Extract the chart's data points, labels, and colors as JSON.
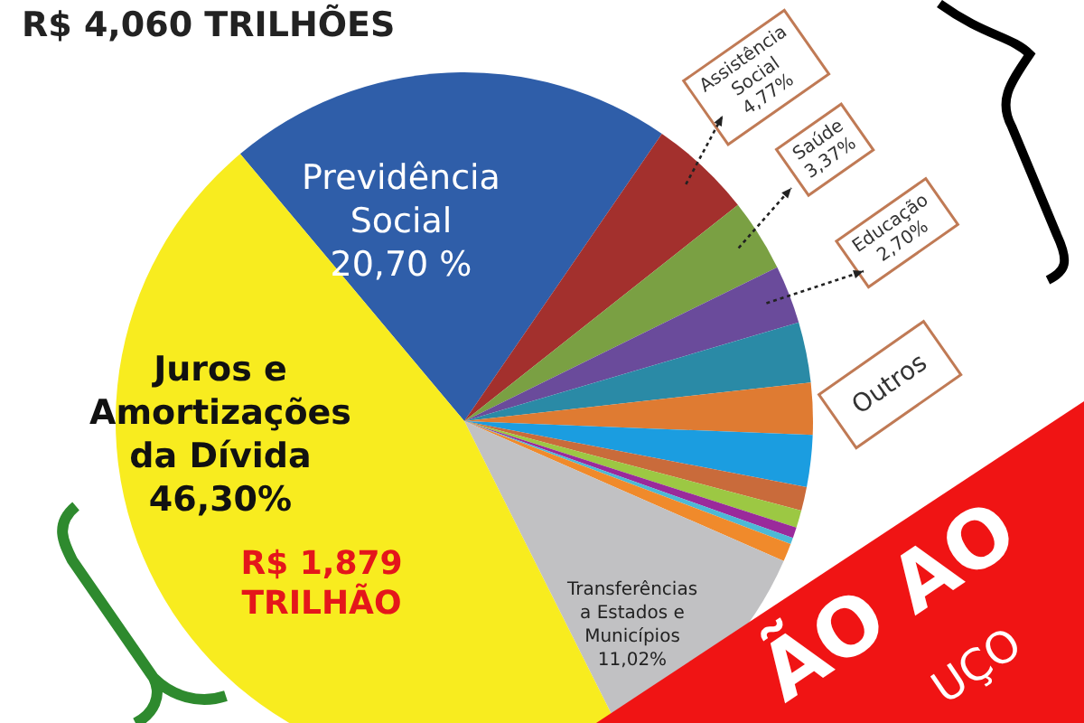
{
  "chart_data": {
    "type": "pie",
    "title": "R$ 4,060 TRILHÕES",
    "categories": [
      "Previdência Social",
      "Assistência Social",
      "Saúde",
      "Educação",
      null,
      null,
      null,
      null,
      null,
      null,
      null,
      null,
      "Transferências a Estados e Municípios",
      "Juros e Amortizações da Dívida"
    ],
    "values": [
      20.7,
      4.77,
      3.37,
      2.7,
      2.8,
      2.4,
      2.4,
      1.1,
      0.8,
      0.5,
      0.3,
      0.84,
      11.02,
      46.3
    ],
    "colors": [
      "#2f5ea9",
      "#a3302d",
      "#7aa043",
      "#6a4b9b",
      "#2a8aa6",
      "#df7b32",
      "#1b9de0",
      "#c96b3b",
      "#9cc843",
      "#9a2a9b",
      "#4cb9d6",
      "#f08a2b",
      "#c1c1c3",
      "#f8ec1f"
    ],
    "value_labels": [
      "20,70 %",
      "4,77%",
      "3,37%",
      "2,70%",
      null,
      null,
      null,
      null,
      null,
      null,
      null,
      null,
      "11,02%",
      "46,30%"
    ],
    "annotations": [
      "R$ 1,879 TRILHÃO",
      "Outros",
      "ÃO AO",
      "UÇO"
    ]
  }
}
